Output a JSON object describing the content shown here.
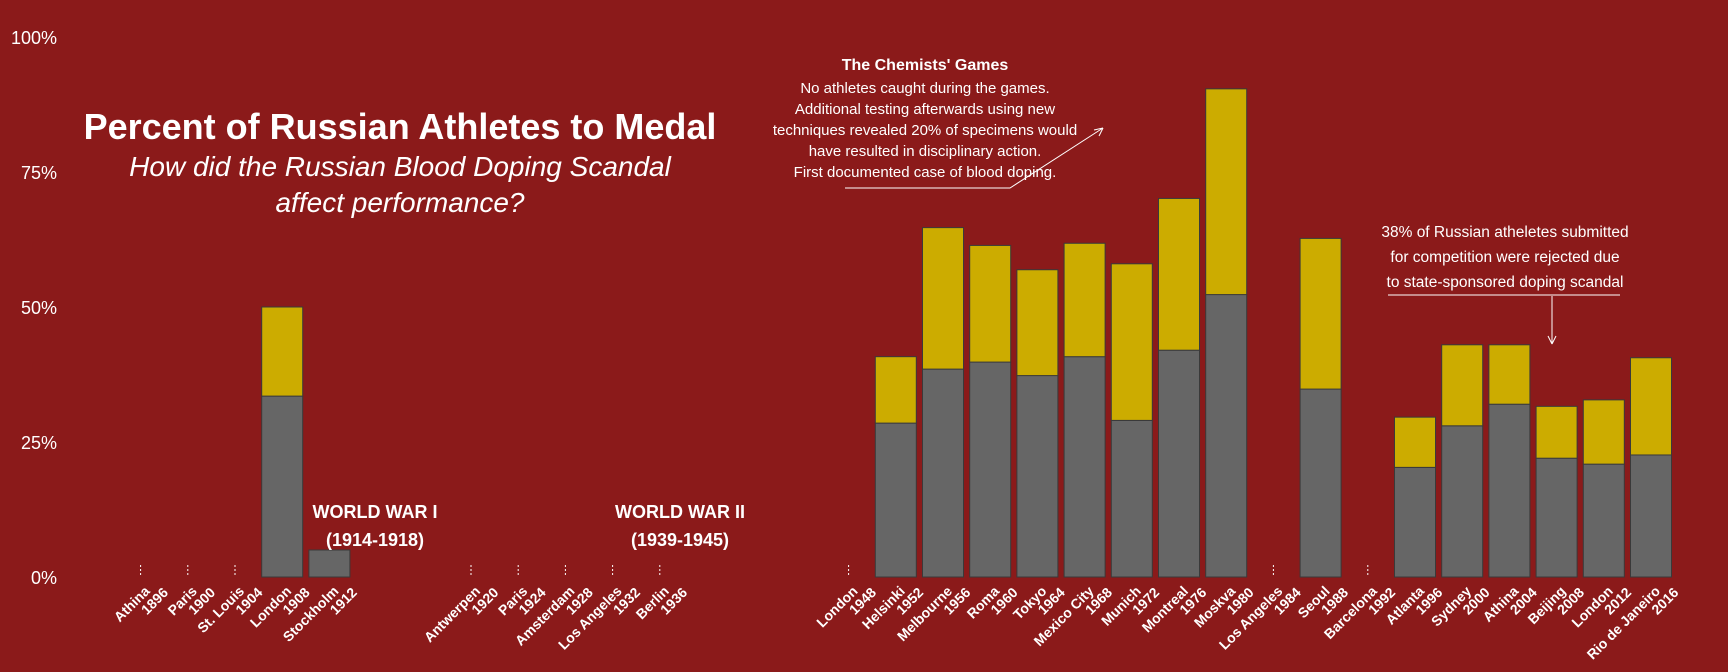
{
  "title": "Percent of Russian Athletes to Medal",
  "subtitle_line1": "How did the Russian Blood Doping Scandal",
  "subtitle_line2": "affect performance?",
  "annotations": {
    "chemists_title": "The Chemists' Games",
    "chemists_lines": [
      "No athletes caught during the games.",
      "Additional testing afterwards using new",
      "techniques revealed 20% of specimens would",
      "have resulted in disciplinary action.",
      "First documented case of blood doping."
    ],
    "rio_lines": [
      "38% of Russian atheletes submitted",
      "for competition were rejected due",
      "to state-sponsored doping scandal"
    ],
    "ww1_line1": "WORLD WAR I",
    "ww1_line2": "(1914-1918)",
    "ww2_line1": "WORLD WAR II",
    "ww2_line2": "(1939-1945)"
  },
  "colors": {
    "background": "#8b1a1a",
    "lower_segment": "#666666",
    "upper_segment": "#ccac00",
    "text": "#ffffff"
  },
  "chart_data": {
    "type": "bar",
    "stacked": true,
    "ylim": [
      0,
      100
    ],
    "yticks": [
      "0%",
      "25%",
      "50%",
      "75%",
      "100%"
    ],
    "grid": false,
    "categories": [
      [
        "Athina",
        "1896"
      ],
      [
        "Paris",
        "1900"
      ],
      [
        "St. Louis",
        "1904"
      ],
      [
        "London",
        "1908"
      ],
      [
        "Stockholm",
        "1912"
      ],
      [
        "",
        ""
      ],
      [
        "",
        ""
      ],
      [
        "Antwerpen",
        "1920"
      ],
      [
        "Paris",
        "1924"
      ],
      [
        "Amsterdam",
        "1928"
      ],
      [
        "Los Angeles",
        "1932"
      ],
      [
        "Berlin",
        "1936"
      ],
      [
        "",
        ""
      ],
      [
        "",
        ""
      ],
      [
        "",
        ""
      ],
      [
        "London",
        "1948"
      ],
      [
        "Helsinki",
        "1952"
      ],
      [
        "Melbourne",
        "1956"
      ],
      [
        "Roma",
        "1960"
      ],
      [
        "Tokyo",
        "1964"
      ],
      [
        "Mexico City",
        "1968"
      ],
      [
        "Munich",
        "1972"
      ],
      [
        "Montreal",
        "1976"
      ],
      [
        "Moskva",
        "1980"
      ],
      [
        "Los Angeles",
        "1984"
      ],
      [
        "Seoul",
        "1988"
      ],
      [
        "Barcelona",
        "1992"
      ],
      [
        "Atlanta",
        "1996"
      ],
      [
        "Sydney",
        "2000"
      ],
      [
        "Athina",
        "2004"
      ],
      [
        "Beijing",
        "2008"
      ],
      [
        "London",
        "2012"
      ],
      [
        "Rio de Janeiro",
        "2016"
      ]
    ],
    "series": [
      {
        "values": [
          0,
          0,
          0,
          33.5,
          5,
          null,
          null,
          0,
          0,
          0,
          0,
          0,
          null,
          null,
          null,
          0,
          28.5,
          38.5,
          39.8,
          37.3,
          40.8,
          29,
          42,
          52.3,
          0,
          34.8,
          0,
          20.3,
          28,
          32,
          22,
          20.9,
          22.6
        ]
      },
      {
        "values": [
          0,
          0,
          0,
          16.5,
          0,
          null,
          null,
          0,
          0,
          0,
          0,
          0,
          null,
          null,
          null,
          0,
          12.3,
          26.2,
          21.6,
          19.6,
          21,
          29,
          28.1,
          38.1,
          0,
          27.9,
          0,
          9.3,
          15,
          11,
          9.6,
          11.9,
          18
        ]
      }
    ]
  }
}
